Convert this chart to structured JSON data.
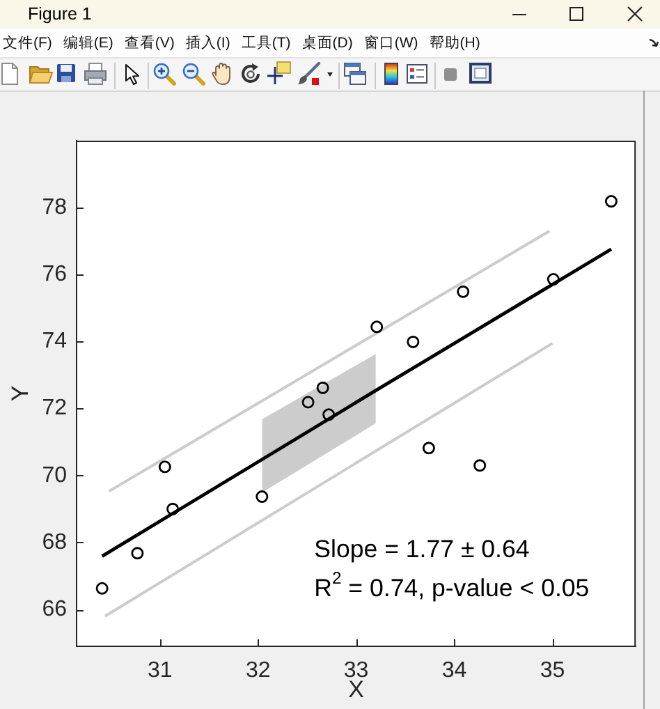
{
  "chart_data": {
    "type": "scatter",
    "title": "Figure 1",
    "xlabel": "X",
    "ylabel": "Y",
    "annotations": [
      "文件(F)",
      "编辑(E)",
      "查看(V)",
      "插入(I)",
      "工具(T)",
      "桌面(D)",
      "窗口(W)",
      "帮助(H)",
      "Slope = 1.77 ± 0.64\nR$^{2}$ = 0.74, p-value < 0.05"
    ],
    "xlim": [
      30.15,
      35.85
    ],
    "xticks": [
      31,
      32,
      33,
      34,
      35
    ],
    "ylim": [
      64.9,
      80
    ],
    "yticks": [
      66,
      68,
      70,
      72,
      74,
      76,
      78
    ],
    "series": [
      {
        "color": "#000000",
        "marker": "circle",
        "x": [
          30.41,
          30.77,
          31.05,
          31.13,
          32.04,
          32.51,
          32.66,
          32.72,
          33.21,
          33.58,
          33.74,
          34.09,
          34.26,
          35.01,
          35.6
        ],
        "values": [
          66.63,
          67.68,
          70.26,
          69.0,
          69.37,
          72.19,
          72.62,
          71.82,
          74.44,
          73.99,
          70.82,
          75.49,
          70.3,
          75.86,
          78.19
        ]
      },
      {
        "type": "line",
        "color": "#000000",
        "marker": "none",
        "x": [
          30.41,
          32.04,
          33.2,
          35.6
        ],
        "values": [
          67.59,
          70.48,
          72.54,
          76.76
        ],
        "lower": [
          null,
          69.49,
          71.56,
          null
        ],
        "upper": [
          null,
          71.68,
          73.63,
          null
        ]
      },
      {
        "type": "line",
        "color": "#cccccc",
        "marker": "none",
        "x": [
          30.48,
          34.97
        ],
        "values": [
          69.53,
          77.3
        ]
      },
      {
        "type": "line",
        "color": "#cccccc",
        "marker": "none",
        "x": [
          30.44,
          35.0
        ],
        "values": [
          65.8,
          73.95
        ]
      }
    ]
  }
}
